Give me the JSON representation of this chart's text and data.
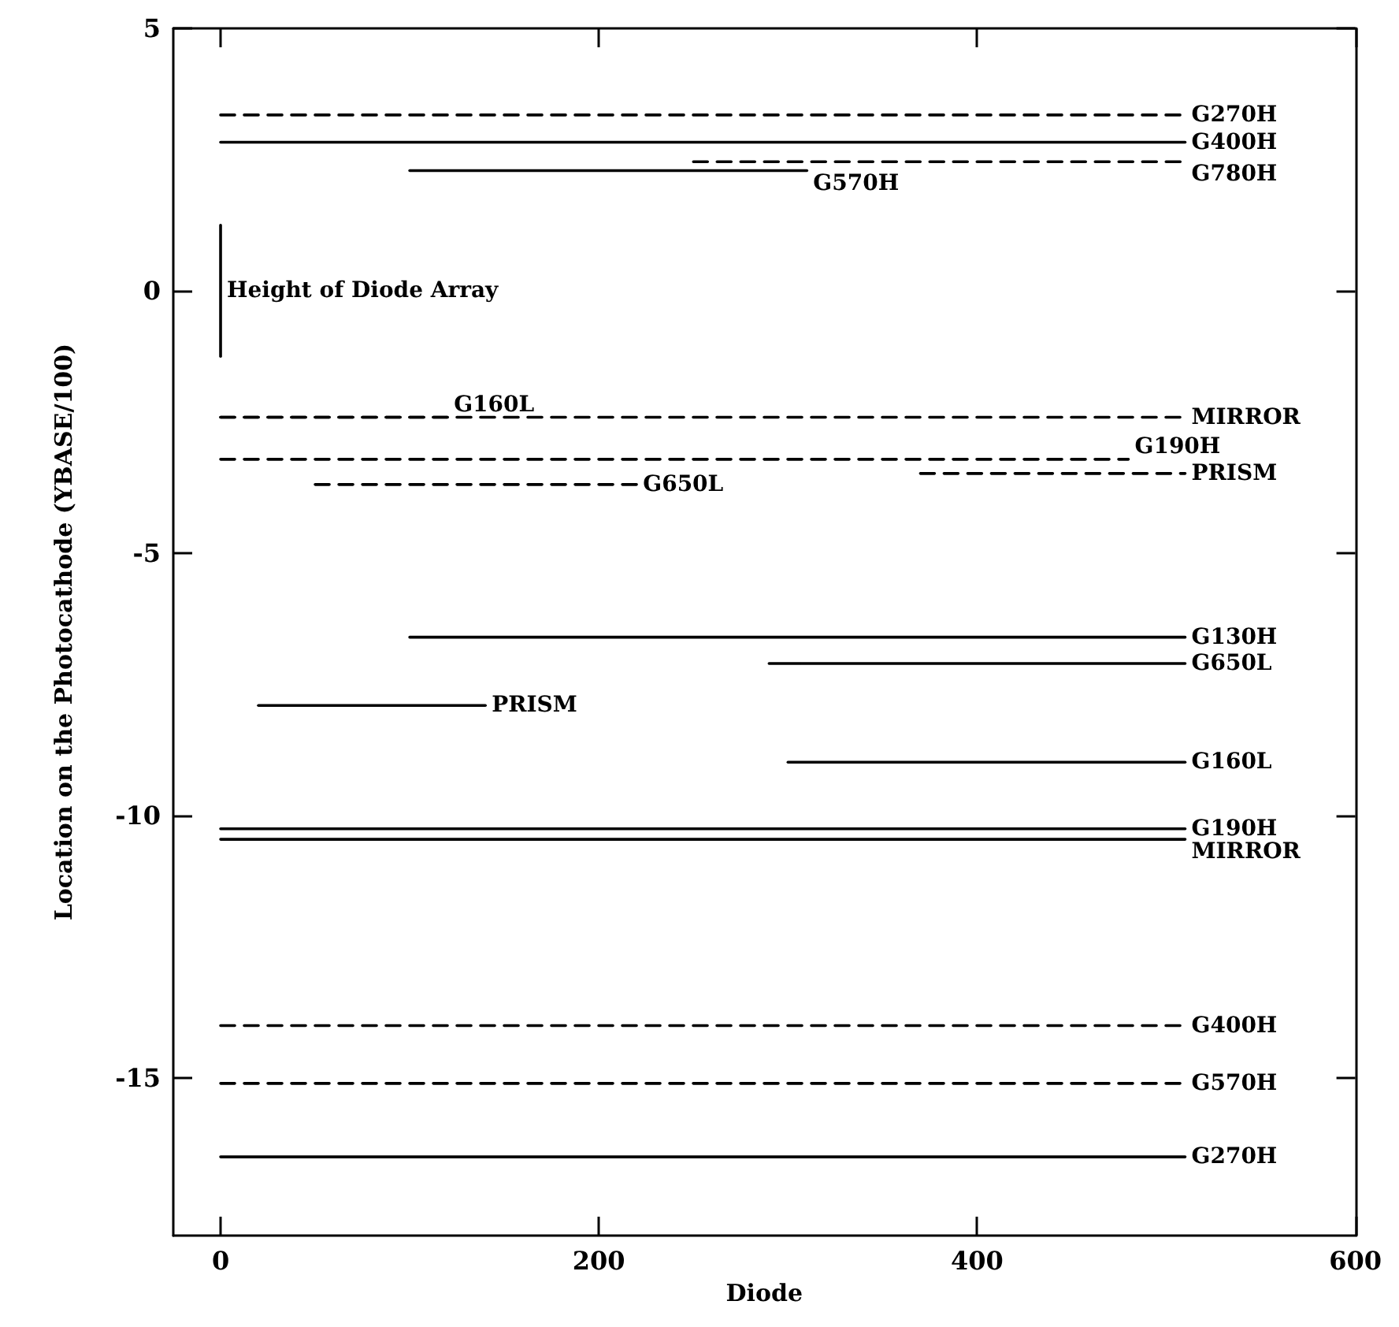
{
  "chart_data": {
    "type": "line",
    "xlabel": "Diode",
    "ylabel": "Location on the Photocathode (YBASE/100)",
    "xlim": [
      -25,
      600
    ],
    "xticks": [
      0,
      200,
      400,
      600
    ],
    "ylim": [
      -18,
      5
    ],
    "yticks": [
      -15,
      -10,
      -5,
      0,
      5
    ],
    "grid": false,
    "marker": "none",
    "series": [
      {
        "x": [
          0,
          510
        ],
        "values": [
          3.35,
          3.35
        ],
        "line_style": "dashed",
        "color": "#000000"
      },
      {
        "x": [
          0,
          510
        ],
        "values": [
          2.83,
          2.83
        ],
        "line_style": "solid",
        "color": "#000000"
      },
      {
        "x": [
          100,
          310
        ],
        "values": [
          2.29,
          2.29
        ],
        "line_style": "solid",
        "color": "#000000"
      },
      {
        "x": [
          250,
          510
        ],
        "values": [
          2.46,
          2.46
        ],
        "line_style": "dashed",
        "color": "#000000"
      },
      {
        "x": [
          0,
          0
        ],
        "values": [
          1.25,
          -1.25
        ],
        "line_style": "solid",
        "color": "#000000"
      },
      {
        "x": [
          0,
          120
        ],
        "values": [
          -2.41,
          -2.41
        ],
        "line_style": "dashed",
        "color": "#000000"
      },
      {
        "x": [
          0,
          510
        ],
        "values": [
          -2.41,
          -2.41
        ],
        "line_style": "dashed",
        "color": "#000000"
      },
      {
        "x": [
          0,
          480
        ],
        "values": [
          -3.21,
          -3.21
        ],
        "line_style": "dashed",
        "color": "#000000"
      },
      {
        "x": [
          50,
          220
        ],
        "values": [
          -3.69,
          -3.69
        ],
        "line_style": "dashed",
        "color": "#000000"
      },
      {
        "x": [
          370,
          510
        ],
        "values": [
          -3.48,
          -3.48
        ],
        "line_style": "dashed",
        "color": "#000000"
      },
      {
        "x": [
          100,
          510
        ],
        "values": [
          -6.6,
          -6.6
        ],
        "line_style": "solid",
        "color": "#000000"
      },
      {
        "x": [
          290,
          510
        ],
        "values": [
          -7.1,
          -7.1
        ],
        "line_style": "solid",
        "color": "#000000"
      },
      {
        "x": [
          20,
          140
        ],
        "values": [
          -7.9,
          -7.9
        ],
        "line_style": "solid",
        "color": "#000000"
      },
      {
        "x": [
          300,
          510
        ],
        "values": [
          -8.98,
          -8.98
        ],
        "line_style": "solid",
        "color": "#000000"
      },
      {
        "x": [
          0,
          510
        ],
        "values": [
          -10.25,
          -10.25
        ],
        "line_style": "solid",
        "color": "#000000"
      },
      {
        "x": [
          0,
          510
        ],
        "values": [
          -10.45,
          -10.45
        ],
        "line_style": "solid",
        "color": "#000000"
      },
      {
        "x": [
          0,
          510
        ],
        "values": [
          -14.0,
          -14.0
        ],
        "line_style": "dashed",
        "color": "#000000"
      },
      {
        "x": [
          0,
          510
        ],
        "values": [
          -15.1,
          -15.1
        ],
        "line_style": "dashed",
        "color": "#000000"
      },
      {
        "x": [
          0,
          510
        ],
        "values": [
          -16.5,
          -16.5
        ],
        "line_style": "solid",
        "color": "#000000"
      }
    ],
    "annotations": [
      {
        "text": "G270H",
        "x": 510,
        "y": 3.35
      },
      {
        "text": "G400H",
        "x": 510,
        "y": 2.83
      },
      {
        "text": "G570H",
        "x": 310,
        "y": 2.29
      },
      {
        "text": "G780H",
        "x": 510,
        "y": 2.46
      },
      {
        "text": "Height of Diode Array",
        "x": 0,
        "y": 0
      },
      {
        "text": "G160L",
        "x": 120,
        "y": -2.41
      },
      {
        "text": "MIRROR",
        "x": 510,
        "y": -2.41
      },
      {
        "text": "G190H",
        "x": 480,
        "y": -3.21
      },
      {
        "text": "G650L",
        "x": 220,
        "y": -3.69
      },
      {
        "text": "PRISM",
        "x": 510,
        "y": -3.48
      },
      {
        "text": "G130H",
        "x": 510,
        "y": -6.6
      },
      {
        "text": "G650L",
        "x": 510,
        "y": -7.1
      },
      {
        "text": "PRISM",
        "x": 140,
        "y": -7.9
      },
      {
        "text": "G160L",
        "x": 510,
        "y": -8.98
      },
      {
        "text": "G190H",
        "x": 510,
        "y": -10.25
      },
      {
        "text": "MIRROR",
        "x": 510,
        "y": -10.45
      },
      {
        "text": "G400H",
        "x": 510,
        "y": -14.0
      },
      {
        "text": "G570H",
        "x": 510,
        "y": -15.1
      },
      {
        "text": "G270H",
        "x": 510,
        "y": -16.5
      }
    ]
  }
}
